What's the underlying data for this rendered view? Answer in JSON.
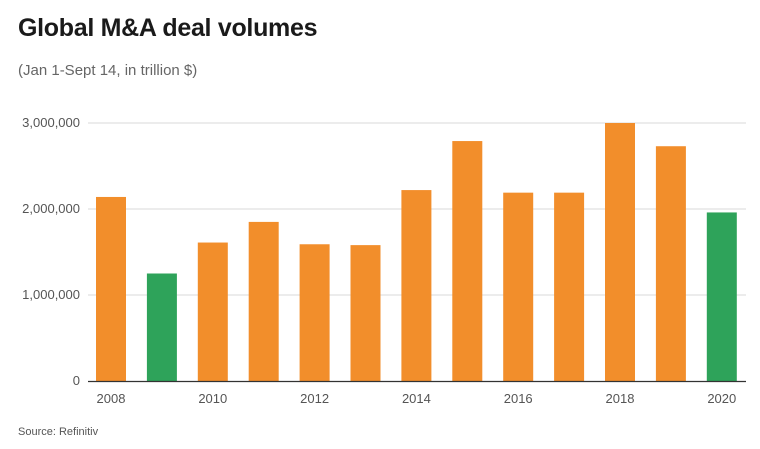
{
  "header": {
    "title": "Global M&A deal volumes",
    "subtitle": "(Jan 1-Sept 14, in trillion $)"
  },
  "footer": {
    "source": "Source: Refinitiv"
  },
  "colors": {
    "default_bar": "#f28e2b",
    "highlight_bar": "#2ea35a",
    "grid": "#d9d9d9",
    "axis": "#333333"
  },
  "chart_data": {
    "type": "bar",
    "title": "Global M&A deal volumes",
    "subtitle": "(Jan 1-Sept 14, in trillion $)",
    "xlabel": "",
    "ylabel": "",
    "categories": [
      "2008",
      "2009",
      "2010",
      "2011",
      "2012",
      "2013",
      "2014",
      "2015",
      "2016",
      "2017",
      "2018",
      "2019",
      "2020"
    ],
    "values": [
      2140000,
      1250000,
      1610000,
      1850000,
      1590000,
      1580000,
      2220000,
      2790000,
      2190000,
      2190000,
      3000000,
      2730000,
      1960000
    ],
    "highlighted": [
      "2009",
      "2020"
    ],
    "x_tick_labels": [
      "2008",
      "2010",
      "2012",
      "2014",
      "2016",
      "2018",
      "2020"
    ],
    "y_ticks": [
      0,
      1000000,
      2000000,
      3000000
    ],
    "y_tick_labels": [
      "0",
      "1,000,000",
      "2,000,000",
      "3,000,000"
    ],
    "ylim": [
      0,
      3000000
    ],
    "grid": true,
    "legend": "none"
  }
}
